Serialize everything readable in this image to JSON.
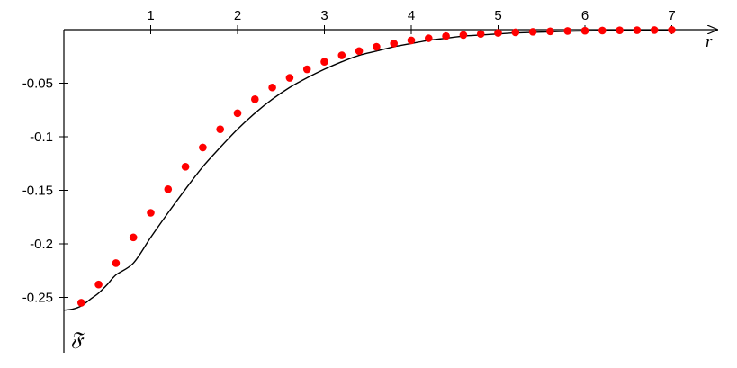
{
  "chart_data": {
    "type": "line",
    "xlabel": "r",
    "ylabel": "𝔉",
    "xlim": [
      0,
      7.4
    ],
    "ylim": [
      -0.3,
      0.002
    ],
    "x_ticks": [
      {
        "value": 1,
        "label": "1"
      },
      {
        "value": 2,
        "label": "2"
      },
      {
        "value": 3,
        "label": "3"
      },
      {
        "value": 4,
        "label": "4"
      },
      {
        "value": 5,
        "label": "5"
      },
      {
        "value": 6,
        "label": "6"
      },
      {
        "value": 7,
        "label": "7"
      }
    ],
    "y_ticks": [
      {
        "value": -0.05,
        "label": "-0.05"
      },
      {
        "value": -0.1,
        "label": "-0.1"
      },
      {
        "value": -0.15,
        "label": "-0.15"
      },
      {
        "value": -0.2,
        "label": "-0.2"
      },
      {
        "value": -0.25,
        "label": "-0.25"
      }
    ],
    "grid": false,
    "series": [
      {
        "style": "line",
        "color": "#000000",
        "x": [
          0,
          0.1,
          0.2,
          0.3,
          0.4,
          0.5,
          0.6,
          0.8,
          1.0,
          1.2,
          1.4,
          1.6,
          1.8,
          2.0,
          2.2,
          2.4,
          2.6,
          2.8,
          3.0,
          3.2,
          3.4,
          3.6,
          3.8,
          4.0,
          4.2,
          4.4,
          4.6,
          4.8,
          5.0,
          5.2,
          5.4,
          5.6,
          5.8,
          6.0,
          6.2,
          6.4,
          6.6,
          6.8,
          7.0
        ],
        "y": [
          -0.262,
          -0.261,
          -0.258,
          -0.252,
          -0.246,
          -0.238,
          -0.229,
          -0.218,
          -0.194,
          -0.171,
          -0.149,
          -0.128,
          -0.11,
          -0.093,
          -0.078,
          -0.065,
          -0.054,
          -0.045,
          -0.037,
          -0.03,
          -0.024,
          -0.02,
          -0.016,
          -0.013,
          -0.01,
          -0.008,
          -0.006,
          -0.005,
          -0.004,
          -0.003,
          -0.0025,
          -0.002,
          -0.0015,
          -0.0012,
          -0.001,
          -0.0008,
          -0.0006,
          -0.0005,
          -0.0004
        ]
      },
      {
        "style": "scatter",
        "color": "#ff0000",
        "x": [
          0.2,
          0.4,
          0.6,
          0.8,
          1.0,
          1.2,
          1.4,
          1.6,
          1.8,
          2.0,
          2.2,
          2.4,
          2.6,
          2.8,
          3.0,
          3.2,
          3.4,
          3.6,
          3.8,
          4.0,
          4.2,
          4.4,
          4.6,
          4.8,
          5.0,
          5.2,
          5.4,
          5.6,
          5.8,
          6.0,
          6.2,
          6.4,
          6.6,
          6.8,
          7.0
        ],
        "y": [
          -0.255,
          -0.238,
          -0.218,
          -0.194,
          -0.171,
          -0.149,
          -0.128,
          -0.11,
          -0.093,
          -0.078,
          -0.065,
          -0.054,
          -0.045,
          -0.037,
          -0.03,
          -0.024,
          -0.02,
          -0.016,
          -0.013,
          -0.01,
          -0.008,
          -0.006,
          -0.005,
          -0.004,
          -0.003,
          -0.0025,
          -0.002,
          -0.0015,
          -0.0012,
          -0.001,
          -0.0008,
          -0.0006,
          -0.0005,
          -0.0004,
          -0.0003
        ]
      }
    ]
  }
}
